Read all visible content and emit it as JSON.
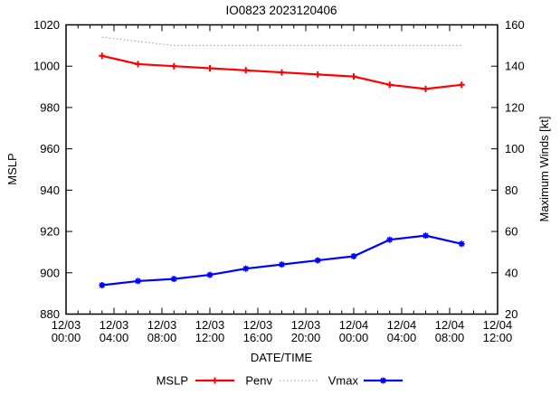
{
  "title": "IO0823 2023120406",
  "chart_data": {
    "type": "line",
    "title": "IO0823 2023120406",
    "xlabel": "DATE/TIME",
    "ylabel_left": "MSLP",
    "ylabel_right": "Maximum Winds [kt]",
    "x_hours": [
      3,
      6,
      9,
      12,
      15,
      18,
      21,
      24,
      27,
      30,
      33
    ],
    "x_range_hours": [
      0,
      36
    ],
    "x_major_tick_step_hours": 4,
    "x_minor_tick_step_hours": 1,
    "x_tick_labels": [
      [
        "12/03",
        "00:00"
      ],
      [
        "12/03",
        "04:00"
      ],
      [
        "12/03",
        "08:00"
      ],
      [
        "12/03",
        "12:00"
      ],
      [
        "12/03",
        "16:00"
      ],
      [
        "12/03",
        "20:00"
      ],
      [
        "12/04",
        "00:00"
      ],
      [
        "12/04",
        "04:00"
      ],
      [
        "12/04",
        "08:00"
      ],
      [
        "12/04",
        "12:00"
      ]
    ],
    "y_left_range": [
      880,
      1020
    ],
    "y_left_ticks": [
      880,
      900,
      920,
      940,
      960,
      980,
      1000,
      1020
    ],
    "y_right_range": [
      20,
      160
    ],
    "y_right_ticks": [
      20,
      40,
      60,
      80,
      100,
      120,
      140,
      160
    ],
    "grid": false,
    "legend_position": "bottom-center",
    "series": [
      {
        "name": "MSLP",
        "axis": "left",
        "color": "#ff0000",
        "style": "solid",
        "marker": "plus",
        "values": [
          1005,
          1001,
          1000,
          999,
          998,
          997,
          996,
          995,
          991,
          989,
          991
        ]
      },
      {
        "name": "Penv",
        "axis": "left",
        "color": "#999999",
        "style": "dotted",
        "marker": "none",
        "values": [
          1014,
          1012,
          1010,
          1010,
          1010,
          1010,
          1010,
          1010,
          1010,
          1010,
          1010
        ]
      },
      {
        "name": "Vmax",
        "axis": "right",
        "color": "#0000ff",
        "style": "solid",
        "marker": "asterisk",
        "values": [
          34,
          36,
          37,
          39,
          42,
          44,
          46,
          48,
          56,
          58,
          54
        ]
      }
    ]
  }
}
